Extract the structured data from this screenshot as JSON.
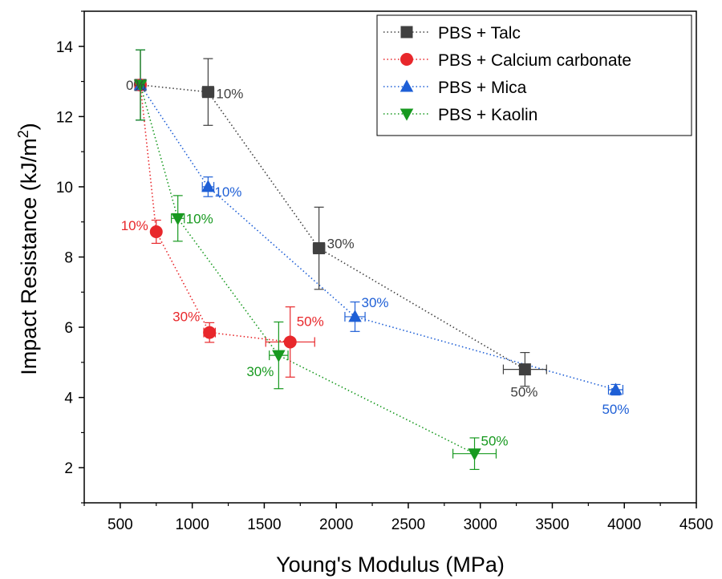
{
  "chart_data": {
    "type": "scatter",
    "xlabel": "Young's Modulus (MPa)",
    "ylabel_main": "Impact Resistance (kJ/m",
    "ylabel_sup": "2",
    "ylabel_end": ")",
    "xlim": [
      250,
      4500
    ],
    "ylim": [
      1,
      15
    ],
    "x_ticks": [
      500,
      1000,
      1500,
      2000,
      2500,
      3000,
      3500,
      4000,
      4500
    ],
    "y_ticks": [
      2,
      4,
      6,
      8,
      10,
      12,
      14
    ],
    "legend_position": "top-right",
    "series": [
      {
        "name": "PBS + Talc",
        "color": "#404040",
        "marker": "square",
        "points": [
          {
            "x": 640,
            "y": 12.9,
            "xerr": 30,
            "yerr": 1.0,
            "label": "0%"
          },
          {
            "x": 1110,
            "y": 12.7,
            "xerr": 40,
            "yerr": 0.95,
            "label": "10%"
          },
          {
            "x": 1880,
            "y": 8.25,
            "xerr": 40,
            "yerr": 1.17,
            "label": "30%"
          },
          {
            "x": 3310,
            "y": 4.8,
            "xerr": 150,
            "yerr": 0.48,
            "label": "50%"
          }
        ]
      },
      {
        "name": "PBS + Calcium carbonate",
        "color": "#e8272b",
        "marker": "circle",
        "points": [
          {
            "x": 640,
            "y": 12.9,
            "xerr": 30,
            "yerr": 1.0,
            "label": ""
          },
          {
            "x": 750,
            "y": 8.72,
            "xerr": 20,
            "yerr": 0.33,
            "label": "10%"
          },
          {
            "x": 1120,
            "y": 5.85,
            "xerr": 40,
            "yerr": 0.28,
            "label": "30%"
          },
          {
            "x": 1680,
            "y": 5.58,
            "xerr": 170,
            "yerr": 1.0,
            "label": "50%"
          }
        ]
      },
      {
        "name": "PBS + Mica",
        "color": "#1e5fd6",
        "marker": "triangle-up",
        "points": [
          {
            "x": 640,
            "y": 12.9,
            "xerr": 30,
            "yerr": 1.0,
            "label": ""
          },
          {
            "x": 1110,
            "y": 10.0,
            "xerr": 40,
            "yerr": 0.28,
            "label": "10%"
          },
          {
            "x": 2130,
            "y": 6.3,
            "xerr": 70,
            "yerr": 0.42,
            "label": "30%"
          },
          {
            "x": 3940,
            "y": 4.22,
            "xerr": 50,
            "yerr": 0.15,
            "label": "50%"
          }
        ]
      },
      {
        "name": "PBS + Kaolin",
        "color": "#17991f",
        "marker": "triangle-down",
        "points": [
          {
            "x": 640,
            "y": 12.9,
            "xerr": 30,
            "yerr": 1.0,
            "label": ""
          },
          {
            "x": 900,
            "y": 9.1,
            "xerr": 45,
            "yerr": 0.65,
            "label": "10%"
          },
          {
            "x": 1600,
            "y": 5.2,
            "xerr": 65,
            "yerr": 0.95,
            "label": "30%"
          },
          {
            "x": 2960,
            "y": 2.4,
            "xerr": 150,
            "yerr": 0.45,
            "label": "50%"
          }
        ]
      }
    ]
  }
}
